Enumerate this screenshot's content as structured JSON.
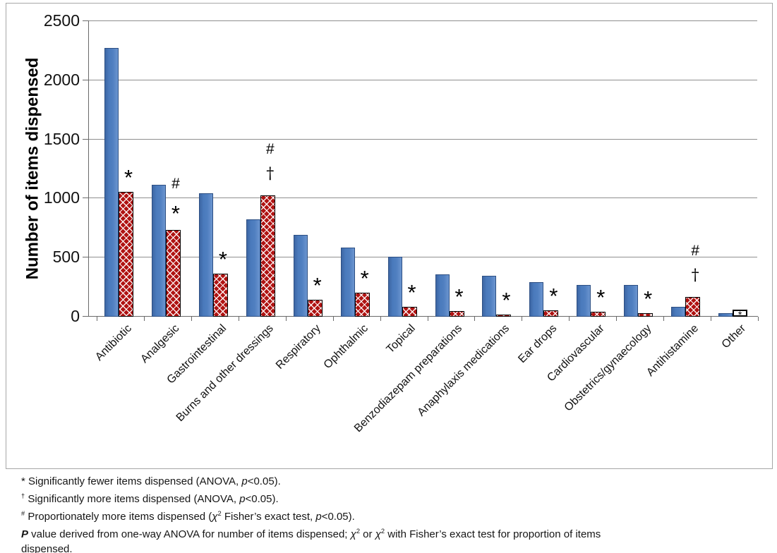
{
  "chart_data": {
    "type": "bar",
    "title": "",
    "ylabel": "Number of items dispensed",
    "xlabel": "",
    "ylim": [
      0,
      2500
    ],
    "yticks": [
      0,
      500,
      1000,
      1500,
      2000,
      2500
    ],
    "grid": "horizontal gridlines every 500, gray",
    "legend_position": "none",
    "categories": [
      "Antibiotic",
      "Analgesic",
      "Gastrointestinal",
      "Burns and other dressings",
      "Respiratory",
      "Ophthalmic",
      "Topical",
      "Benzodiazepam preparations",
      "Anaphylaxis medications",
      "Ear drops",
      "Cardiovascular",
      "Obstetrics/gynaecology",
      "Antihistamine",
      "Other"
    ],
    "series": [
      {
        "style": "solid-blue",
        "color": "#4a7abc",
        "border_color": "#2d4f83",
        "values": [
          2270,
          1110,
          1040,
          815,
          685,
          580,
          500,
          350,
          340,
          285,
          265,
          260,
          80,
          25
        ]
      },
      {
        "style": "red-crosshatch",
        "color": "#b01312",
        "border_color": "#000000",
        "values": [
          1050,
          730,
          360,
          1020,
          135,
          195,
          75,
          40,
          10,
          50,
          35,
          25,
          160,
          55
        ]
      }
    ],
    "annotations": [
      [
        "*"
      ],
      [
        "#",
        "*"
      ],
      [
        "*"
      ],
      [
        "#",
        "†"
      ],
      [
        "*"
      ],
      [
        "*"
      ],
      [
        "*"
      ],
      [
        "*"
      ],
      [
        "*"
      ],
      [
        "*"
      ],
      [
        "*"
      ],
      [
        "*"
      ],
      [
        "#",
        "†"
      ],
      []
    ],
    "other_bar_note": {
      "category": "Other",
      "series_index": 1,
      "style": "white fill with black outline",
      "symbol_inside": "*"
    }
  },
  "footnotes": {
    "lines": [
      {
        "segments": [
          {
            "style": "n",
            "text": "* Significantly fewer items dispensed (ANOVA, "
          },
          {
            "style": "i",
            "text": "p"
          },
          {
            "style": "n",
            "text": "<0.05)."
          }
        ]
      },
      {
        "segments": [
          {
            "style": "sup",
            "text": "†"
          },
          {
            "style": "n",
            "text": " Significantly more items dispensed (ANOVA, "
          },
          {
            "style": "i",
            "text": "p"
          },
          {
            "style": "n",
            "text": "<0.05)."
          }
        ]
      },
      {
        "segments": [
          {
            "style": "sup",
            "text": "#"
          },
          {
            "style": "n",
            "text": " Proportionately more items dispensed ("
          },
          {
            "style": "i",
            "text": "χ"
          },
          {
            "style": "sup",
            "text": "2"
          },
          {
            "style": "n",
            "text": " Fisher’s exact test, "
          },
          {
            "style": "i",
            "text": "p"
          },
          {
            "style": "n",
            "text": "<0.05)."
          }
        ]
      },
      {
        "segments": [
          {
            "style": "bi",
            "text": "P"
          },
          {
            "style": "n",
            "text": " value derived from one-way ANOVA for number of items dispensed; "
          },
          {
            "style": "i",
            "text": "χ"
          },
          {
            "style": "sup",
            "text": "2"
          },
          {
            "style": "n",
            "text": " or "
          },
          {
            "style": "i",
            "text": "χ"
          },
          {
            "style": "sup",
            "text": "2"
          },
          {
            "style": "n",
            "text": " with Fisher’s exact test for proportion of items"
          }
        ]
      },
      {
        "segments": [
          {
            "style": "n",
            "text": "dispensed."
          }
        ]
      }
    ]
  },
  "colors": {
    "background": "#ffffff",
    "frame_border": "#a6a6a6",
    "gridline": "#8f8f8f",
    "axis": "#6a6a6a",
    "bar_blue": "#4a7abc",
    "bar_blue_border": "#2d4f83",
    "bar_red": "#b01312",
    "bar_red_border": "#000000"
  }
}
